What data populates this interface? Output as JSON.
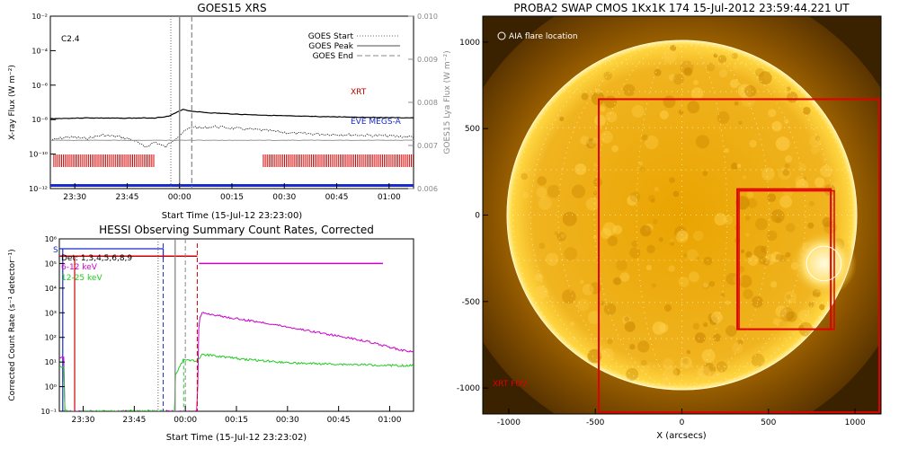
{
  "chart_data": [
    {
      "type": "line",
      "title": "GOES15 XRS",
      "class_label": "C2.4",
      "xlabel": "Start Time (15-Jul-12 23:23:00)",
      "ylabel": "X-ray Flux (W m⁻²)",
      "y2label": "GOES15 Lya Flux (W m⁻²)",
      "x_ticks": [
        "23:30",
        "23:45",
        "00:00",
        "00:15",
        "00:30",
        "00:45",
        "01:00"
      ],
      "x_tick_minutes": [
        7,
        22,
        37,
        52,
        67,
        82,
        97
      ],
      "xlim_minutes": [
        0,
        104
      ],
      "y_log": true,
      "ylim_exp": [
        -12,
        -2
      ],
      "y_ticks": [
        "10⁻¹²",
        "10⁻¹⁰",
        "10⁻⁸",
        "10⁻⁶",
        "10⁻⁴",
        "10⁻²"
      ],
      "y_tick_exps": [
        -12,
        -10,
        -8,
        -6,
        -4,
        -2
      ],
      "y2lim": [
        0.006,
        0.01
      ],
      "y2_ticks": [
        "0.006",
        "0.007",
        "0.008",
        "0.009",
        "0.010"
      ],
      "legend": [
        "GOES Start",
        "GOES Peak",
        "GOES End"
      ],
      "legend_position": "top-right",
      "annotations": [
        "XRT",
        "EVE MEGS-A"
      ],
      "events_minutes": {
        "start": 34.5,
        "peak": 37,
        "end": 40.5
      },
      "series": [
        {
          "name": "long",
          "x": [
            0,
            10,
            20,
            30,
            34,
            36,
            38,
            40,
            45,
            55,
            70,
            85,
            104
          ],
          "y": [
            -7.95,
            -7.9,
            -7.92,
            -7.9,
            -7.8,
            -7.6,
            -7.4,
            -7.5,
            -7.6,
            -7.7,
            -7.8,
            -7.85,
            -7.9
          ]
        },
        {
          "name": "short",
          "x": [
            0,
            5,
            10,
            15,
            20,
            24,
            27,
            30,
            33,
            35,
            37,
            39,
            41,
            43,
            47,
            52,
            60,
            70,
            80,
            90,
            104
          ],
          "y": [
            -9.2,
            -9.0,
            -9.1,
            -8.9,
            -9.0,
            -9.2,
            -9.6,
            -9.3,
            -9.6,
            -9.2,
            -8.9,
            -8.6,
            -8.4,
            -8.5,
            -8.4,
            -8.5,
            -8.6,
            -8.8,
            -8.85,
            -8.9,
            -9.0
          ]
        },
        {
          "name": "lya",
          "x": [
            0,
            104
          ],
          "y": [
            0.00712,
            0.00712
          ]
        }
      ],
      "coverage_bars": [
        {
          "name": "XRT",
          "ranges": [
            [
              1,
              30
            ],
            [
              61,
              104
            ]
          ]
        },
        {
          "name": "EVE MEGS-A",
          "ranges": [
            [
              0,
              104
            ]
          ]
        }
      ]
    },
    {
      "type": "line",
      "title": "HESSI Observing Summary Count Rates, Corrected",
      "xlabel": "Start Time (15-Jul-12 23:23:02)",
      "ylabel": "Corrected Count Rate (s⁻¹ detector⁻¹)",
      "x_ticks": [
        "23:30",
        "23:45",
        "00:00",
        "00:15",
        "00:30",
        "00:45",
        "01:00"
      ],
      "x_tick_minutes": [
        7,
        22,
        37,
        52,
        67,
        82,
        97
      ],
      "xlim_minutes": [
        0,
        104
      ],
      "y_log": true,
      "ylim_exp": [
        -1,
        6
      ],
      "y_ticks": [
        "10⁻¹",
        "10⁰",
        "10¹",
        "10²",
        "10³",
        "10⁴",
        "10⁵",
        "10⁶"
      ],
      "y_tick_exps": [
        -1,
        0,
        1,
        2,
        3,
        4,
        5,
        6
      ],
      "legend": [
        "Det: 1,3,4,5,6,8,9",
        "6-12 keV",
        "12-25 keV"
      ],
      "legend_position": "top-left",
      "annotations": [
        "S"
      ],
      "series": [
        {
          "name": "6-12 keV",
          "x": [
            0,
            1.5,
            1.6,
            3,
            3.1,
            40.5,
            41,
            42,
            44,
            50,
            60,
            70,
            80,
            90,
            100,
            104
          ],
          "y": [
            1.2,
            1.2,
            -1,
            -1,
            -1,
            -1,
            2.7,
            3.0,
            2.95,
            2.8,
            2.6,
            2.35,
            2.1,
            1.85,
            1.5,
            1.4
          ]
        },
        {
          "name": "12-25 keV",
          "x": [
            0,
            1.5,
            1.6,
            34,
            34.1,
            36.5,
            37,
            40,
            41,
            42,
            46,
            55,
            70,
            85,
            104
          ],
          "y": [
            0.8,
            0.8,
            -1,
            -1,
            0.5,
            1.1,
            1.1,
            1.05,
            1.1,
            1.3,
            1.25,
            1.1,
            0.95,
            0.9,
            0.85
          ]
        },
        {
          "name": "attenuator",
          "x": [
            0,
            40.5
          ],
          "y": [
            5.3,
            5.3
          ]
        },
        {
          "name": "6-12 keV",
          "x": [
            41,
            95
          ],
          "y": [
            5.0,
            5.0
          ]
        }
      ],
      "vlines_minutes": {
        "blue_dash": 30.5,
        "gray_solid": 34,
        "gray_dash": 37,
        "red_dash": 40.5,
        "green_dash": 36.5,
        "gray_dot": 29
      }
    },
    {
      "type": "image",
      "title": "PROBA2 SWAP CMOS 1Kx1K 174 15-Jul-2012 23:59:44.221 UT",
      "xlabel": "X (arcsecs)",
      "x_ticks": [
        "-1000",
        "-500",
        "0",
        "500",
        "1000"
      ],
      "x_tick_values": [
        -1000,
        -500,
        0,
        500,
        1000
      ],
      "y_ticks": [
        "-1000",
        "-500",
        "0",
        "500",
        "1000"
      ],
      "y_tick_values": [
        -1000,
        -500,
        0,
        500,
        1000
      ],
      "xlim": [
        -1150,
        1150
      ],
      "ylim": [
        -1150,
        1150
      ],
      "labels": {
        "aia": "AIA flare location",
        "fov": "XRT FOV"
      },
      "fov_outer": {
        "x": [
          -480,
          1140
        ],
        "y": [
          -1140,
          670
        ]
      },
      "fov_inner": {
        "x": [
          320,
          860
        ],
        "y": [
          -660,
          150
        ]
      },
      "flare": {
        "x": 820,
        "y": -280,
        "r": 100
      },
      "sun_radius": 1010
    }
  ]
}
